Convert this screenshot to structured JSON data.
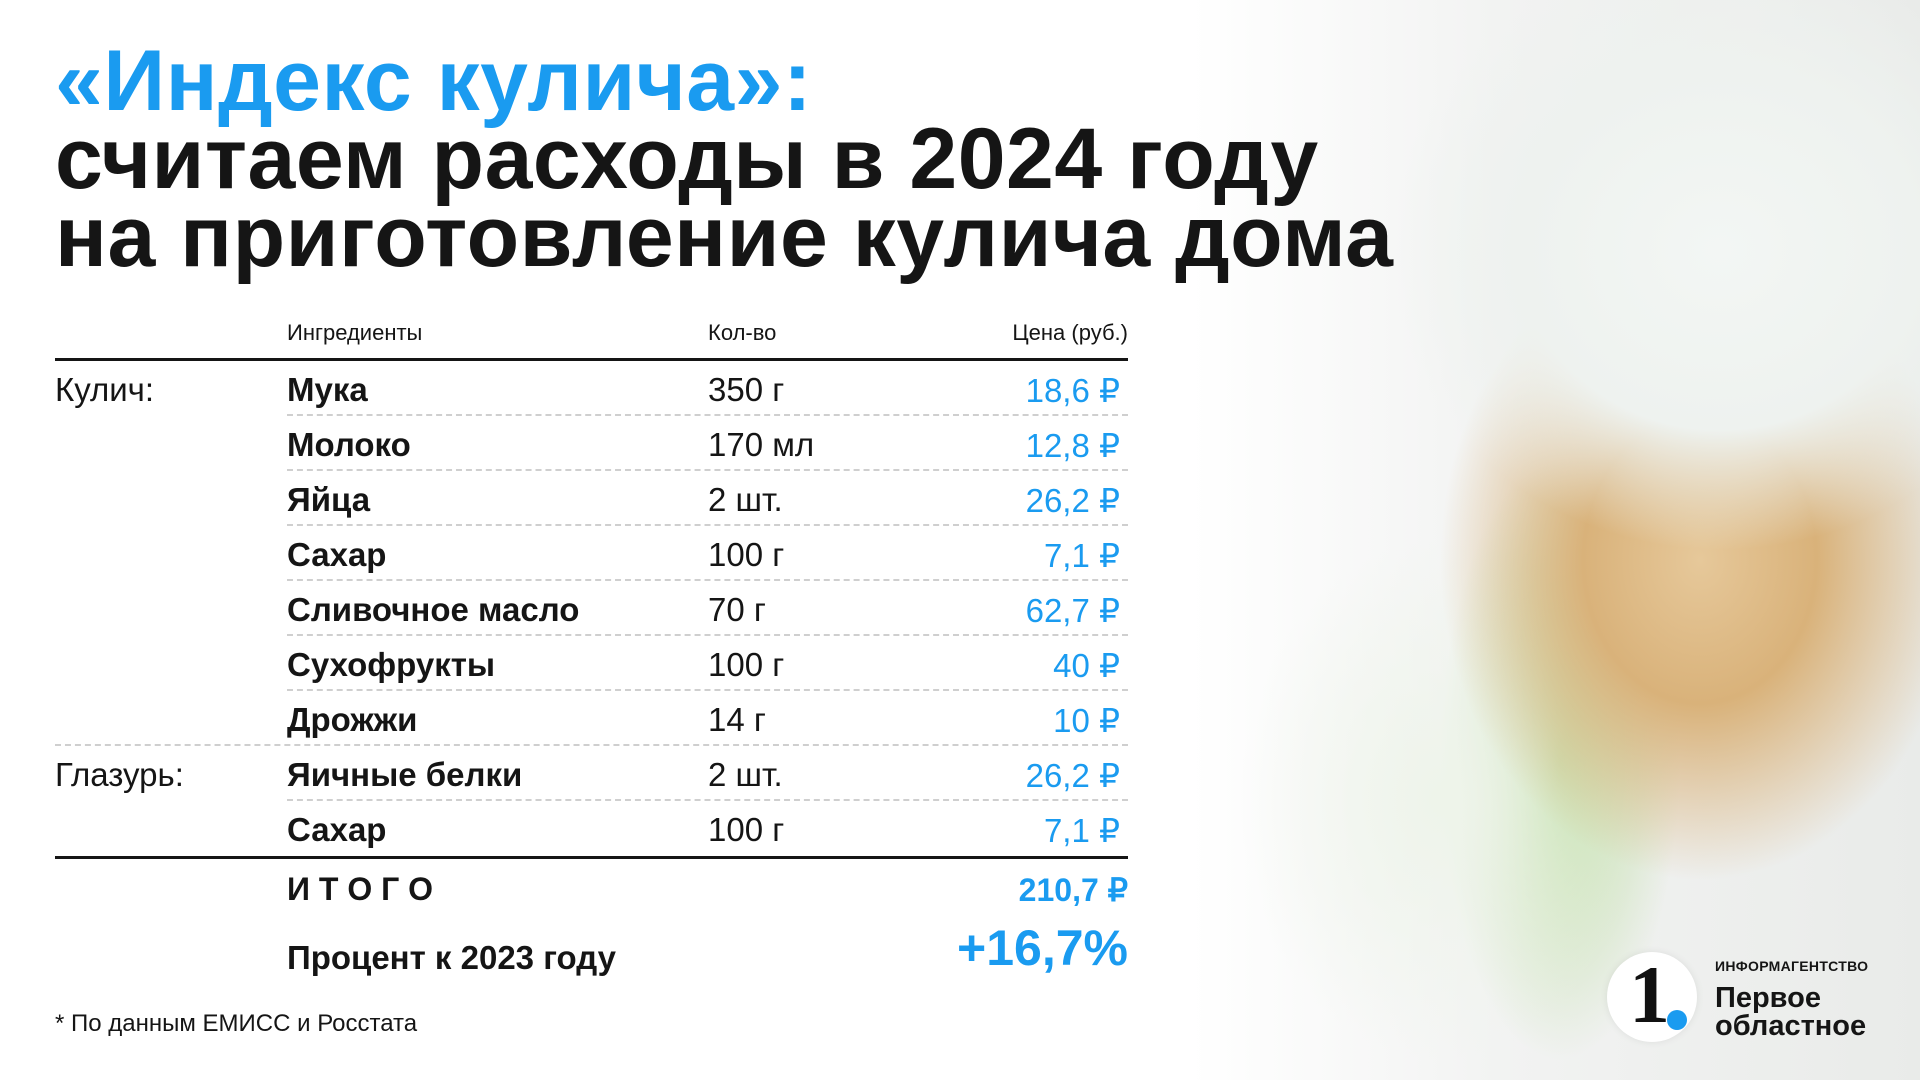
{
  "title": {
    "line1": "«Индекс кулича»:",
    "line2": "считаем расходы в 2024 году",
    "line3": "на приготовление кулича дома"
  },
  "table": {
    "headers": [
      "Ингредиенты",
      "Кол-во",
      "Цена (руб.)"
    ],
    "rows": [
      {
        "group": "Кулич:",
        "name": "Мука",
        "qty": "350 г",
        "price": "18,6 ₽"
      },
      {
        "group": "",
        "name": "Молоко",
        "qty": "170 мл",
        "price": "12,8 ₽"
      },
      {
        "group": "",
        "name": "Яйца",
        "qty": "2 шт.",
        "price": "26,2 ₽"
      },
      {
        "group": "",
        "name": "Сахар",
        "qty": "100 г",
        "price": "7,1 ₽"
      },
      {
        "group": "",
        "name": "Сливочное масло",
        "qty": "70 г",
        "price": "62,7 ₽"
      },
      {
        "group": "",
        "name": "Сухофрукты",
        "qty": "100 г",
        "price": "40 ₽"
      },
      {
        "group": "",
        "name": "Дрожжи",
        "qty": "14 г",
        "price": "10 ₽"
      },
      {
        "group": "Глазурь:",
        "name": "Яичные белки",
        "qty": "2 шт.",
        "price": "26,2 ₽"
      },
      {
        "group": "",
        "name": "Сахар",
        "qty": "100 г",
        "price": "7,1 ₽"
      }
    ],
    "total_label": "И Т О Г О",
    "total_value": "210,7 ₽",
    "percent_label": "Процент к 2023 году",
    "percent_value": "+16,7%"
  },
  "footnote": "* По данным ЕМИСС и Росстата",
  "brand": {
    "small": "ИНФОРМАГЕНТСТВО",
    "line1": "Первое",
    "line2": "областное",
    "logo_text": "1."
  },
  "colors": {
    "accent": "#1a9bf0",
    "text": "#151515"
  }
}
